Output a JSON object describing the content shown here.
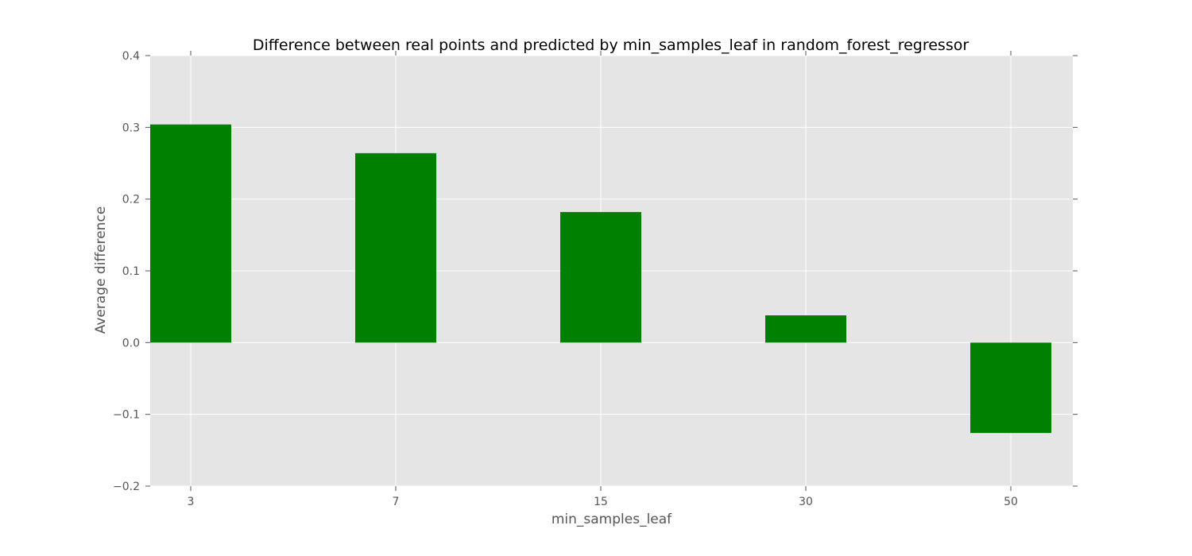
{
  "chart_data": {
    "type": "bar",
    "title": "Difference between real points and predicted by min_samples_leaf in random_forest_regressor",
    "xlabel": "min_samples_leaf",
    "ylabel": "Average difference",
    "categories": [
      "3",
      "7",
      "15",
      "30",
      "50"
    ],
    "values": [
      0.304,
      0.264,
      0.182,
      0.038,
      -0.126
    ],
    "ylim": [
      -0.2,
      0.4
    ],
    "yticks": [
      0.4,
      0.3,
      0.2,
      0.1,
      0.0,
      -0.1,
      -0.2
    ],
    "ytick_labels": [
      "0.4",
      "0.3",
      "0.2",
      "0.1",
      "0.0",
      "−0.1",
      "−0.2"
    ],
    "grid": true,
    "colors": {
      "bar": "#008000",
      "plot_background": "#e5e5e5",
      "grid": "#ffffff"
    }
  }
}
